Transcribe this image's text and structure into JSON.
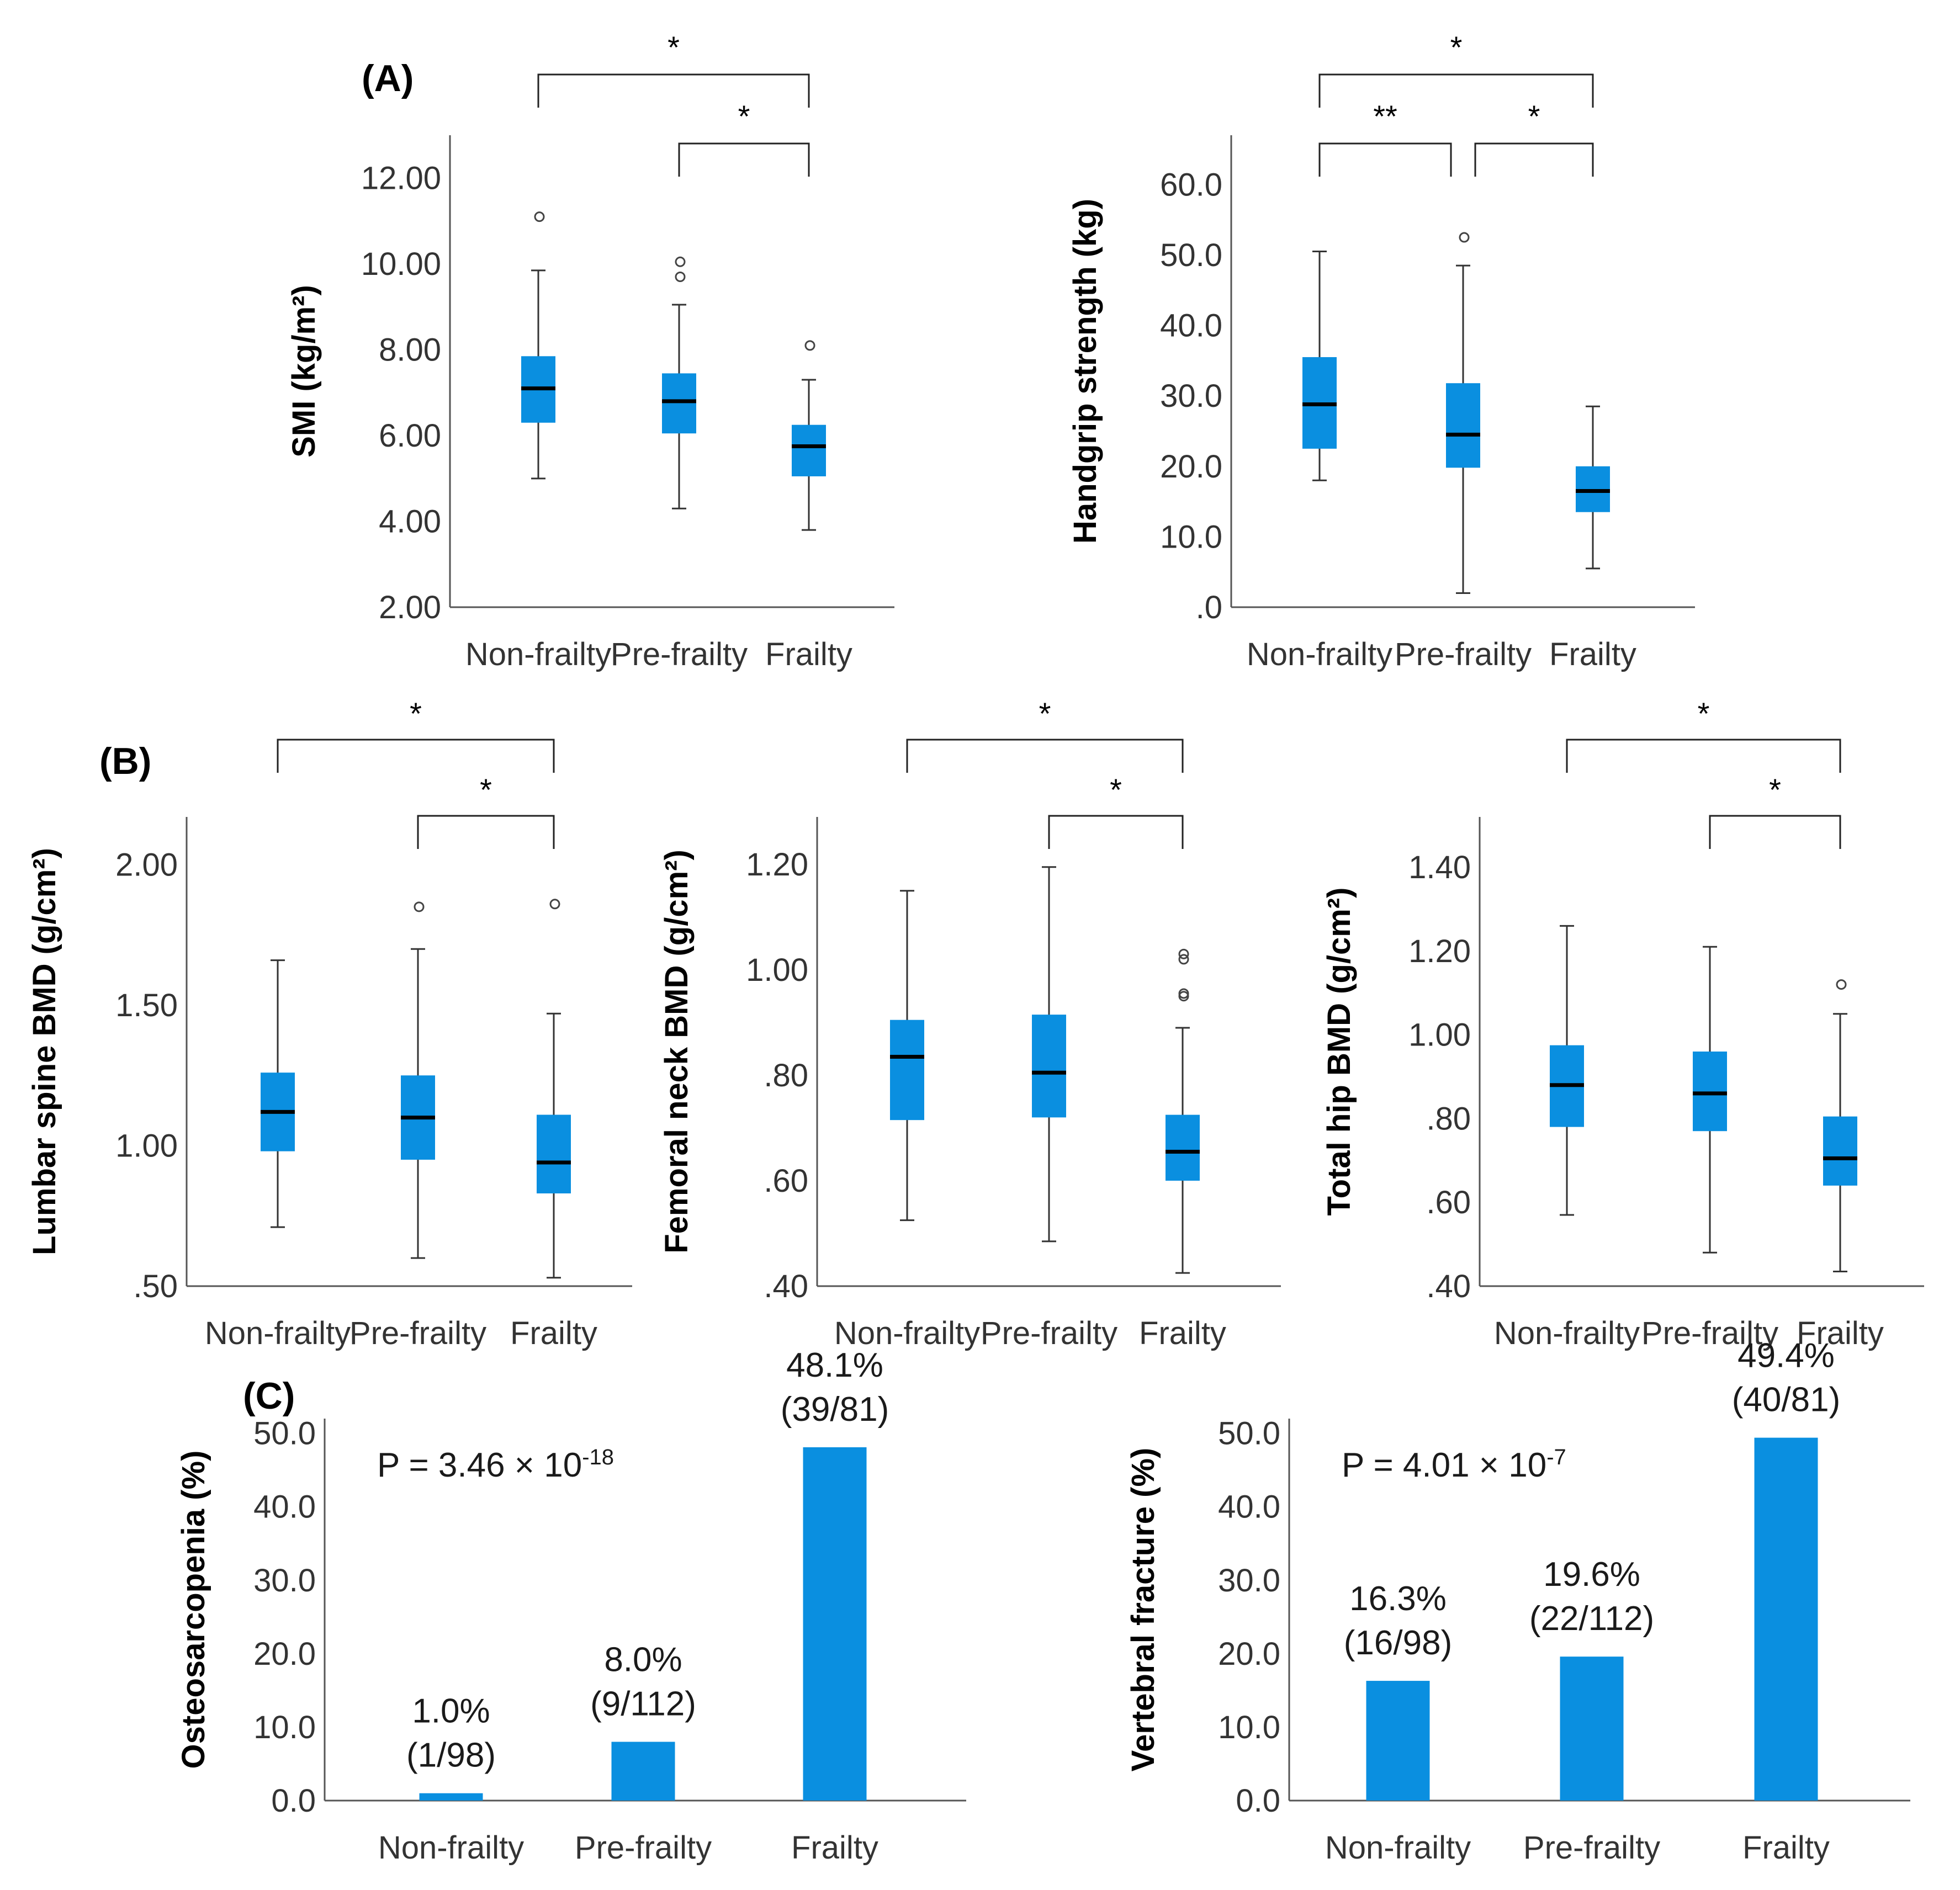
{
  "panels": {
    "A": "(A)",
    "B": "(B)",
    "C": "(C)"
  },
  "colors": {
    "box": "#0a8fe0",
    "bar": "#0a8fe0",
    "median": "#000000",
    "axis": "#555555"
  },
  "chart_data": [
    {
      "id": "smi",
      "type": "box",
      "panel": "A",
      "ylabel": "SMI (kg/m²)",
      "categories": [
        "Non-frailty",
        "Pre-frailty",
        "Frailty"
      ],
      "ylim": [
        2.0,
        13.0
      ],
      "yticks": [
        2.0,
        4.0,
        6.0,
        8.0,
        10.0,
        12.0
      ],
      "ytick_labels": [
        "2.00",
        "4.00",
        "6.00",
        "8.00",
        "10.00",
        "12.00"
      ],
      "boxes": [
        {
          "whisker_low": 5.0,
          "q1": 6.3,
          "median": 7.1,
          "q3": 7.85,
          "whisker_high": 9.85,
          "outliers": [
            11.1
          ]
        },
        {
          "whisker_low": 4.3,
          "q1": 6.05,
          "median": 6.8,
          "q3": 7.45,
          "whisker_high": 9.05,
          "outliers": [
            9.7,
            10.05
          ]
        },
        {
          "whisker_low": 3.8,
          "q1": 5.05,
          "median": 5.75,
          "q3": 6.25,
          "whisker_high": 7.3,
          "outliers": [
            8.1
          ]
        }
      ],
      "brackets": [
        {
          "from": 0,
          "to": 2,
          "label": "*",
          "level": 2
        },
        {
          "from": 1,
          "to": 2,
          "label": "*",
          "level": 1
        }
      ]
    },
    {
      "id": "grip",
      "type": "box",
      "panel": "A",
      "ylabel": "Handgrip strength (kg)",
      "categories": [
        "Non-frailty",
        "Pre-frailty",
        "Frailty"
      ],
      "ylim": [
        0.0,
        67.0
      ],
      "yticks": [
        0,
        10,
        20,
        30,
        40,
        50,
        60
      ],
      "ytick_labels": [
        ".0",
        "10.0",
        "20.0",
        "30.0",
        "40.0",
        "50.0",
        "60.0"
      ],
      "boxes": [
        {
          "whisker_low": 18.0,
          "q1": 22.5,
          "median": 28.8,
          "q3": 35.5,
          "whisker_high": 50.5,
          "outliers": []
        },
        {
          "whisker_low": 2.0,
          "q1": 19.8,
          "median": 24.5,
          "q3": 31.8,
          "whisker_high": 48.5,
          "outliers": [
            52.5
          ]
        },
        {
          "whisker_low": 5.5,
          "q1": 13.5,
          "median": 16.5,
          "q3": 20.0,
          "whisker_high": 28.5,
          "outliers": []
        }
      ],
      "brackets": [
        {
          "from": 0,
          "to": 2,
          "label": "*",
          "level": 2
        },
        {
          "from": 0,
          "to": 1,
          "label": "**",
          "level": 1
        },
        {
          "from": 1,
          "to": 2,
          "label": "*",
          "level": 1
        }
      ]
    },
    {
      "id": "lumbar",
      "type": "box",
      "panel": "B",
      "ylabel": "Lumbar spine BMD (g/cm²)",
      "categories": [
        "Non-frailty",
        "Pre-frailty",
        "Frailty"
      ],
      "ylim": [
        0.5,
        2.17
      ],
      "yticks": [
        0.5,
        1.0,
        1.5,
        2.0
      ],
      "ytick_labels": [
        ".50",
        "1.00",
        "1.50",
        "2.00"
      ],
      "boxes": [
        {
          "whisker_low": 0.71,
          "q1": 0.98,
          "median": 1.12,
          "q3": 1.26,
          "whisker_high": 1.66,
          "outliers": []
        },
        {
          "whisker_low": 0.6,
          "q1": 0.95,
          "median": 1.1,
          "q3": 1.25,
          "whisker_high": 1.7,
          "outliers": [
            1.85
          ]
        },
        {
          "whisker_low": 0.53,
          "q1": 0.83,
          "median": 0.94,
          "q3": 1.11,
          "whisker_high": 1.47,
          "outliers": [
            1.86
          ]
        }
      ],
      "brackets": [
        {
          "from": 0,
          "to": 2,
          "label": "*",
          "level": 2
        },
        {
          "from": 1,
          "to": 2,
          "label": "*",
          "level": 1
        }
      ]
    },
    {
      "id": "femoral",
      "type": "box",
      "panel": "B",
      "ylabel": "Femoral neck BMD (g/cm²)",
      "categories": [
        "Non-frailty",
        "Pre-frailty",
        "Frailty"
      ],
      "ylim": [
        0.4,
        1.29
      ],
      "yticks": [
        0.4,
        0.6,
        0.8,
        1.0,
        1.2
      ],
      "ytick_labels": [
        ".40",
        ".60",
        ".80",
        "1.00",
        "1.20"
      ],
      "boxes": [
        {
          "whisker_low": 0.525,
          "q1": 0.715,
          "median": 0.835,
          "q3": 0.905,
          "whisker_high": 1.15,
          "outliers": []
        },
        {
          "whisker_low": 0.485,
          "q1": 0.72,
          "median": 0.805,
          "q3": 0.915,
          "whisker_high": 1.195,
          "outliers": []
        },
        {
          "whisker_low": 0.425,
          "q1": 0.6,
          "median": 0.655,
          "q3": 0.725,
          "whisker_high": 0.89,
          "outliers": [
            0.95,
            0.955,
            1.02,
            1.03
          ]
        }
      ],
      "brackets": [
        {
          "from": 0,
          "to": 2,
          "label": "*",
          "level": 2
        },
        {
          "from": 1,
          "to": 2,
          "label": "*",
          "level": 1
        }
      ]
    },
    {
      "id": "hip",
      "type": "box",
      "panel": "B",
      "ylabel": "Total hip BMD (g/cm²)",
      "categories": [
        "Non-frailty",
        "Pre-frailty",
        "Frailty"
      ],
      "ylim": [
        0.4,
        1.52
      ],
      "yticks": [
        0.4,
        0.6,
        0.8,
        1.0,
        1.2,
        1.4
      ],
      "ytick_labels": [
        ".40",
        ".60",
        ".80",
        "1.00",
        "1.20",
        "1.40"
      ],
      "boxes": [
        {
          "whisker_low": 0.57,
          "q1": 0.78,
          "median": 0.88,
          "q3": 0.975,
          "whisker_high": 1.26,
          "outliers": []
        },
        {
          "whisker_low": 0.48,
          "q1": 0.77,
          "median": 0.86,
          "q3": 0.96,
          "whisker_high": 1.21,
          "outliers": []
        },
        {
          "whisker_low": 0.435,
          "q1": 0.64,
          "median": 0.705,
          "q3": 0.805,
          "whisker_high": 1.05,
          "outliers": [
            1.12
          ]
        }
      ],
      "brackets": [
        {
          "from": 0,
          "to": 2,
          "label": "*",
          "level": 2
        },
        {
          "from": 1,
          "to": 2,
          "label": "*",
          "level": 1
        }
      ]
    },
    {
      "id": "osteo",
      "type": "bar",
      "panel": "C",
      "ylabel": "Osteosarcopenia (%)",
      "categories": [
        "Non-frailty",
        "Pre-frailty",
        "Frailty"
      ],
      "values": [
        1.0,
        8.0,
        48.1
      ],
      "labels": [
        [
          "1.0%",
          "(1/98)"
        ],
        [
          "8.0%",
          "(9/112)"
        ],
        [
          "48.1%",
          "(39/81)"
        ]
      ],
      "ylim": [
        0,
        52
      ],
      "yticks": [
        0,
        10,
        20,
        30,
        40,
        50
      ],
      "ytick_labels": [
        "0.0",
        "10.0",
        "20.0",
        "30.0",
        "40.0",
        "50.0"
      ],
      "pvalue": {
        "prefix": "P = 3.46 × 10",
        "exponent": "-18"
      }
    },
    {
      "id": "vert",
      "type": "bar",
      "panel": "C",
      "ylabel": "Vertebral fracture (%)",
      "categories": [
        "Non-frailty",
        "Pre-frailty",
        "Frailty"
      ],
      "values": [
        16.3,
        19.6,
        49.4
      ],
      "labels": [
        [
          "16.3%",
          "(16/98)"
        ],
        [
          "19.6%",
          "(22/112)"
        ],
        [
          "49.4%",
          "(40/81)"
        ]
      ],
      "ylim": [
        0,
        52
      ],
      "yticks": [
        0,
        10,
        20,
        30,
        40,
        50
      ],
      "ytick_labels": [
        "0.0",
        "10.0",
        "20.0",
        "30.0",
        "40.0",
        "50.0"
      ],
      "pvalue": {
        "prefix": "P = 4.01 × 10",
        "exponent": "-7"
      }
    }
  ]
}
